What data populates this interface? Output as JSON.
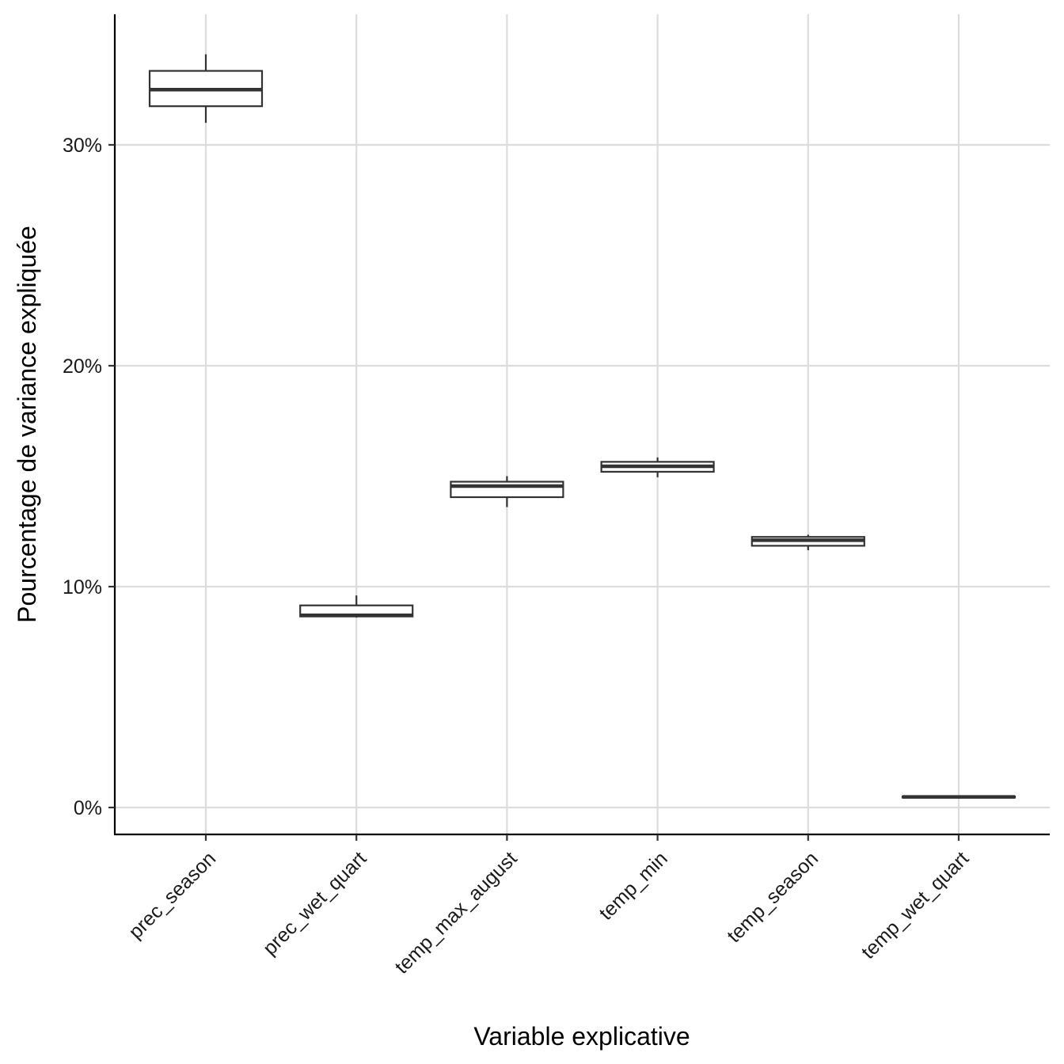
{
  "chart_data": {
    "type": "boxplot",
    "title": "",
    "xlabel": "Variable explicative",
    "ylabel": "Pourcentage de variance expliquée",
    "categories": [
      "prec_season",
      "prec_wet_quart",
      "temp_max_august",
      "temp_min",
      "temp_season",
      "temp_wet_quart"
    ],
    "ylim": [
      -1.2,
      36
    ],
    "y_ticks": [
      0,
      10,
      20,
      30
    ],
    "y_tick_labels": [
      "0%",
      "10%",
      "20%",
      "30%"
    ],
    "grid": true,
    "boxes": [
      {
        "category": "prec_season",
        "whisker_low": 31.0,
        "q1": 31.75,
        "median": 32.5,
        "q3": 33.35,
        "whisker_high": 34.1
      },
      {
        "category": "prec_wet_quart",
        "whisker_low": 8.6,
        "q1": 8.65,
        "median": 8.7,
        "q3": 9.15,
        "whisker_high": 9.6
      },
      {
        "category": "temp_max_august",
        "whisker_low": 13.6,
        "q1": 14.05,
        "median": 14.55,
        "q3": 14.75,
        "whisker_high": 15.0
      },
      {
        "category": "temp_min",
        "whisker_low": 14.95,
        "q1": 15.2,
        "median": 15.45,
        "q3": 15.65,
        "whisker_high": 15.85
      },
      {
        "category": "temp_season",
        "whisker_low": 11.65,
        "q1": 11.85,
        "median": 12.1,
        "q3": 12.25,
        "whisker_high": 12.35
      },
      {
        "category": "temp_wet_quart",
        "whisker_low": 0.45,
        "q1": 0.45,
        "median": 0.48,
        "q3": 0.5,
        "whisker_high": 0.5
      }
    ]
  }
}
